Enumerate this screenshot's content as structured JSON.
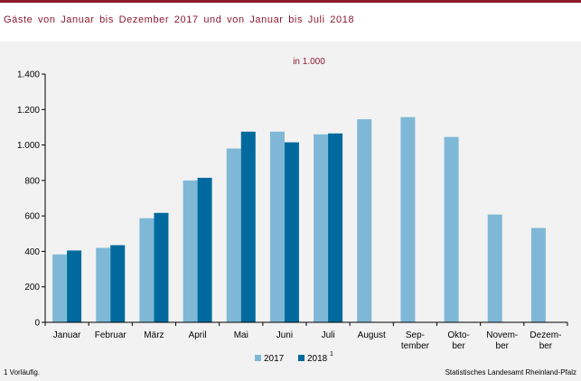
{
  "title": "Gäste von Januar bis Dezember 2017 und von Januar bis Juli 2018",
  "footnote": "1 Vorläufig.",
  "source": "Statistisches Landesamt Rheinland-Pfalz",
  "chart_data": {
    "type": "bar",
    "title": "Gäste von Januar bis Dezember 2017 und von Januar bis Juli 2018",
    "unit_label": "in 1.000",
    "categories": [
      [
        "Januar"
      ],
      [
        "Februar"
      ],
      [
        "März"
      ],
      [
        "April"
      ],
      [
        "Mai"
      ],
      [
        "Juni"
      ],
      [
        "Juli"
      ],
      [
        "August"
      ],
      [
        "Sep-",
        "tember"
      ],
      [
        "Okto-",
        "ber"
      ],
      [
        "Novem-",
        "ber"
      ],
      [
        "Dezem-",
        "ber"
      ]
    ],
    "series": [
      {
        "name": "2017",
        "color": "#7fb8d6",
        "values": [
          383,
          420,
          587,
          800,
          980,
          1075,
          1060,
          1145,
          1157,
          1045,
          608,
          532
        ]
      },
      {
        "name": "2018",
        "superscript": "1",
        "color": "#006a9e",
        "values": [
          405,
          435,
          617,
          815,
          1075,
          1015,
          1065,
          null,
          null,
          null,
          null,
          null
        ]
      }
    ],
    "ylim": [
      0,
      1400
    ],
    "yticks": [
      0,
      200,
      400,
      600,
      800,
      1000,
      1200,
      1400
    ],
    "ytick_labels": [
      "0",
      "200",
      "400",
      "600",
      "800",
      "1.000",
      "1.200",
      "1.400"
    ],
    "grid": false,
    "legend_position": "bottom-center"
  }
}
